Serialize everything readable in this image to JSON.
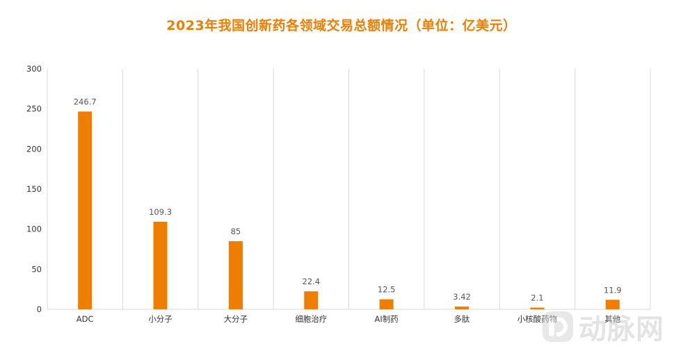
{
  "chart_data": {
    "type": "bar",
    "title": "2023年我国创新药各领域交易总额情况（单位：亿美元）",
    "xlabel": "",
    "ylabel": "",
    "categories": [
      "ADC",
      "小分子",
      "大分子",
      "细胞治疗",
      "AI制药",
      "多肽",
      "小核酸药物",
      "其他"
    ],
    "values": [
      246.7,
      109.3,
      85,
      22.4,
      12.5,
      3.42,
      2.1,
      11.9
    ],
    "data_labels": [
      "246.7",
      "109.3",
      "85",
      "22.4",
      "12.5",
      "3.42",
      "2.1",
      "11.9"
    ],
    "ylim": [
      0,
      300
    ],
    "yticks": [
      0,
      50,
      100,
      150,
      200,
      250,
      300
    ],
    "grid": "vertical category separators",
    "legend": "none",
    "bar_color": "#ef7d00"
  },
  "watermark": {
    "icon": "vb-logo-icon",
    "text": "动脉网"
  }
}
